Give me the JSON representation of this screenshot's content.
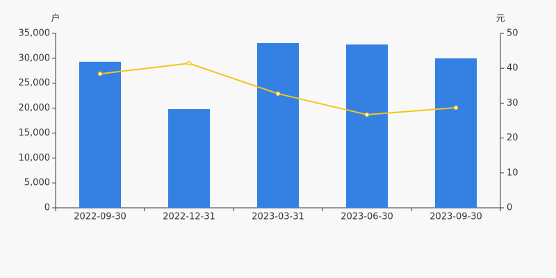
{
  "chart_data": {
    "type": "bar",
    "ylabel": "户",
    "y2label": "元",
    "categories": [
      "2022-09-30",
      "2022-12-31",
      "2023-03-31",
      "2023-06-30",
      "2023-09-30"
    ],
    "series": [
      {
        "type": "bar",
        "color": "#3481e3",
        "values": [
          29300,
          19800,
          33050,
          32770,
          29980
        ]
      },
      {
        "type": "line",
        "axis": "y2",
        "color": "#f5c518",
        "values": [
          38.4,
          41.4,
          32.7,
          26.7,
          28.7
        ]
      }
    ],
    "ylim": [
      0,
      35000
    ],
    "yticks": [
      0,
      {
        "value": 5000,
        "label": "5,000"
      },
      {
        "value": 10000,
        "label": "10,000"
      },
      {
        "value": 15000,
        "label": "15,000"
      },
      {
        "value": 20000,
        "label": "20,000"
      },
      {
        "value": 25000,
        "label": "25,000"
      },
      {
        "value": 30000,
        "label": "30,000"
      },
      {
        "value": 35000,
        "label": "35,000"
      }
    ],
    "y2lim": [
      0,
      50
    ],
    "y2ticks": [
      0,
      10,
      20,
      30,
      40,
      50
    ]
  }
}
